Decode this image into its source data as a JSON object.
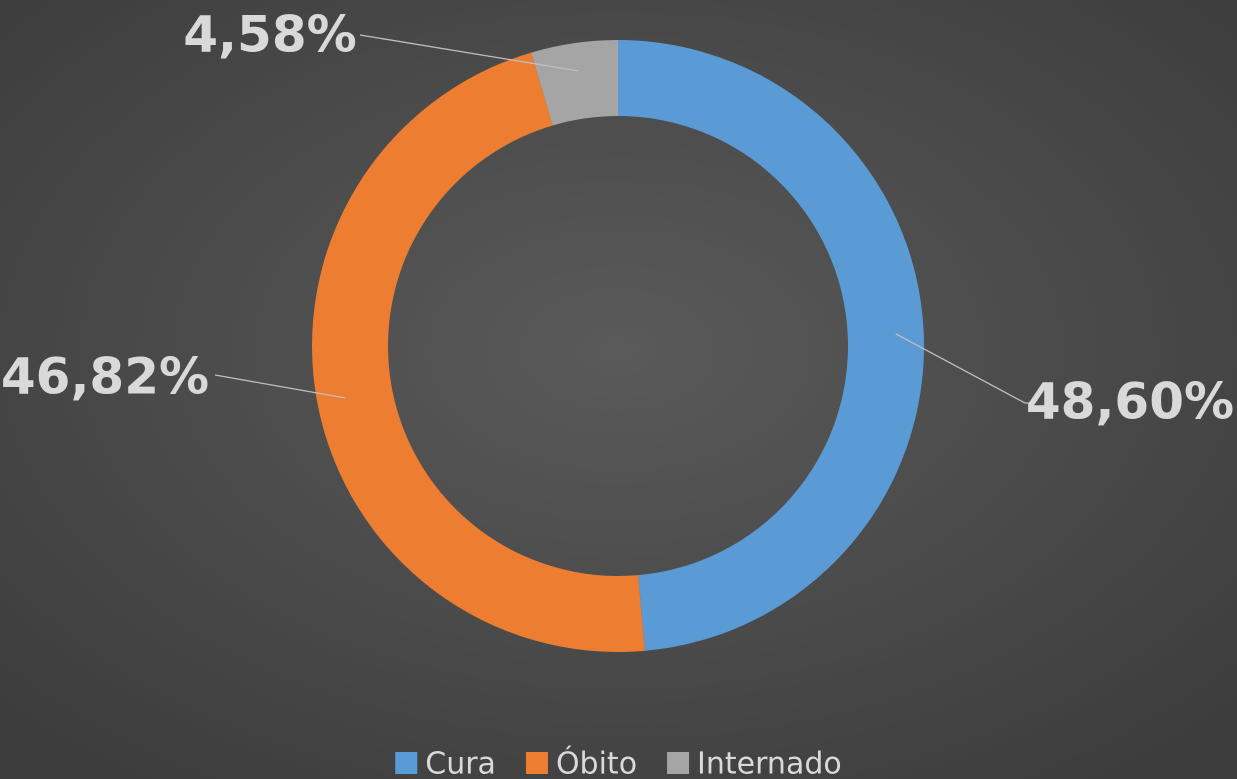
{
  "chart_data": {
    "type": "donut",
    "categories": [
      "Cura",
      "Óbito",
      "Internado"
    ],
    "values": [
      48.6,
      46.82,
      4.58
    ],
    "value_labels": [
      "48,60%",
      "46,82%",
      "4,58%"
    ],
    "colors": [
      "#5b9bd5",
      "#ed7d31",
      "#a5a5a5"
    ],
    "legend": "bottom"
  }
}
